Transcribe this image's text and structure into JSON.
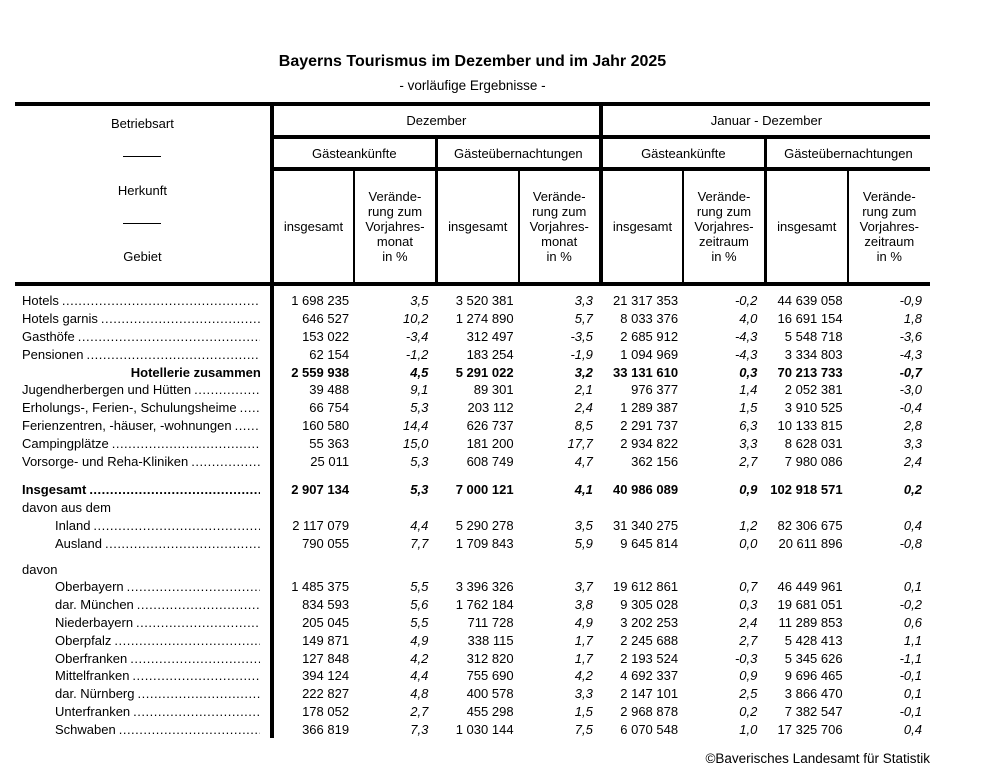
{
  "title": "Bayerns Tourismus im Dezember und im Jahr 2025",
  "subtitle": "- vorläufige Ergebnisse -",
  "stub": {
    "line1": "Betriebsart",
    "line2": "Herkunft",
    "line3": "Gebiet"
  },
  "columns": {
    "group_december": "Dezember",
    "group_jan_dec": "Januar - Dezember",
    "arrivals": "Gästeankünfte",
    "overnights": "Gästeübernachtungen",
    "total": "insgesamt",
    "change_month": "Verände-\nrung zum\nVorjahres-\nmonat\nin %",
    "change_period": "Verände-\nrung zum\nVorjahres-\nzeitraum\nin %"
  },
  "rows": [
    {
      "label": "Hotels",
      "type": "normal",
      "indent": 0,
      "dots": true,
      "values": [
        "1 698 235",
        "3,5",
        "3 520 381",
        "3,3",
        "21 317 353",
        "-0,2",
        "44 639 058",
        "-0,9"
      ]
    },
    {
      "label": "Hotels garnis",
      "type": "normal",
      "indent": 0,
      "dots": true,
      "values": [
        "646 527",
        "10,2",
        "1 274 890",
        "5,7",
        "8 033 376",
        "4,0",
        "16 691 154",
        "1,8"
      ]
    },
    {
      "label": "Gasthöfe",
      "type": "normal",
      "indent": 0,
      "dots": true,
      "values": [
        "153 022",
        "-3,4",
        "312 497",
        "-3,5",
        "2 685 912",
        "-4,3",
        "5 548 718",
        "-3,6"
      ]
    },
    {
      "label": "Pensionen",
      "type": "normal",
      "indent": 0,
      "dots": true,
      "values": [
        "62 154",
        "-1,2",
        "183 254",
        "-1,9",
        "1 094 969",
        "-4,3",
        "3 334 803",
        "-4,3"
      ]
    },
    {
      "label": "Hotellerie zusammen",
      "type": "subtotal",
      "indent": 0,
      "dots": false,
      "values": [
        "2 559 938",
        "4,5",
        "5 291 022",
        "3,2",
        "33 131 610",
        "0,3",
        "70 213 733",
        "-0,7"
      ]
    },
    {
      "label": "Jugendherbergen und Hütten",
      "type": "normal",
      "indent": 0,
      "dots": true,
      "values": [
        "39 488",
        "9,1",
        "89 301",
        "2,1",
        "976 377",
        "1,4",
        "2 052 381",
        "-3,0"
      ]
    },
    {
      "label": "Erholungs-, Ferien-, Schulungsheime",
      "type": "normal",
      "indent": 0,
      "dots": true,
      "values": [
        "66 754",
        "5,3",
        "203 112",
        "2,4",
        "1 289 387",
        "1,5",
        "3 910 525",
        "-0,4"
      ]
    },
    {
      "label": "Ferienzentren, -häuser, -wohnungen",
      "type": "normal",
      "indent": 0,
      "dots": true,
      "values": [
        "160 580",
        "14,4",
        "626 737",
        "8,5",
        "2 291 737",
        "6,3",
        "10 133 815",
        "2,8"
      ]
    },
    {
      "label": "Campingplätze",
      "type": "normal",
      "indent": 0,
      "dots": true,
      "values": [
        "55 363",
        "15,0",
        "181 200",
        "17,7",
        "2 934 822",
        "3,3",
        "8 628 031",
        "3,3"
      ]
    },
    {
      "label": "Vorsorge- und Reha-Kliniken",
      "type": "normal",
      "indent": 0,
      "dots": true,
      "values": [
        "25 011",
        "5,3",
        "608 749",
        "4,7",
        "362 156",
        "2,7",
        "7 980 086",
        "2,4"
      ]
    },
    {
      "label": "Insgesamt",
      "type": "total",
      "indent": 0,
      "dots": true,
      "gap_before": 11,
      "values": [
        "2 907 134",
        "5,3",
        "7 000 121",
        "4,1",
        "40 986 089",
        "0,9",
        "102 918 571",
        "0,2"
      ]
    },
    {
      "label": "davon aus dem",
      "type": "section",
      "indent": 0,
      "dots": false,
      "values": null
    },
    {
      "label": "Inland",
      "type": "normal",
      "indent": 1,
      "dots": true,
      "values": [
        "2 117 079",
        "4,4",
        "5 290 278",
        "3,5",
        "31 340 275",
        "1,2",
        "82 306 675",
        "0,4"
      ]
    },
    {
      "label": "Ausland",
      "type": "normal",
      "indent": 1,
      "dots": true,
      "values": [
        "790 055",
        "7,7",
        "1 709 843",
        "5,9",
        "9 645 814",
        "0,0",
        "20 611 896",
        "-0,8"
      ]
    },
    {
      "label": "davon",
      "type": "section",
      "indent": 0,
      "dots": false,
      "gap_before": 8,
      "values": null
    },
    {
      "label": "Oberbayern",
      "type": "normal",
      "indent": 1,
      "dots": true,
      "values": [
        "1 485 375",
        "5,5",
        "3 396 326",
        "3,7",
        "19 612 861",
        "0,7",
        "46 449 961",
        "0,1"
      ]
    },
    {
      "label": "dar. München",
      "type": "normal",
      "indent": 1,
      "dots": true,
      "values": [
        "834 593",
        "5,6",
        "1 762 184",
        "3,8",
        "9 305 028",
        "0,3",
        "19 681 051",
        "-0,2"
      ]
    },
    {
      "label": "Niederbayern",
      "type": "normal",
      "indent": 1,
      "dots": true,
      "values": [
        "205 045",
        "5,5",
        "711 728",
        "4,9",
        "3 202 253",
        "2,4",
        "11 289 853",
        "0,6"
      ]
    },
    {
      "label": "Oberpfalz",
      "type": "normal",
      "indent": 1,
      "dots": true,
      "values": [
        "149 871",
        "4,9",
        "338 115",
        "1,7",
        "2 245 688",
        "2,7",
        "5 428 413",
        "1,1"
      ]
    },
    {
      "label": "Oberfranken",
      "type": "normal",
      "indent": 1,
      "dots": true,
      "values": [
        "127 848",
        "4,2",
        "312 820",
        "1,7",
        "2 193 524",
        "-0,3",
        "5 345 626",
        "-1,1"
      ]
    },
    {
      "label": "Mittelfranken",
      "type": "normal",
      "indent": 1,
      "dots": true,
      "values": [
        "394 124",
        "4,4",
        "755 690",
        "4,2",
        "4 692 337",
        "0,9",
        "9 696 465",
        "-0,1"
      ]
    },
    {
      "label": "dar. Nürnberg",
      "type": "normal",
      "indent": 1,
      "dots": true,
      "values": [
        "222 827",
        "4,8",
        "400 578",
        "3,3",
        "2 147 101",
        "2,5",
        "3 866 470",
        "0,1"
      ]
    },
    {
      "label": "Unterfranken",
      "type": "normal",
      "indent": 1,
      "dots": true,
      "values": [
        "178 052",
        "2,7",
        "455 298",
        "1,5",
        "2 968 878",
        "0,2",
        "7 382 547",
        "-0,1"
      ]
    },
    {
      "label": "Schwaben",
      "type": "normal",
      "indent": 1,
      "dots": true,
      "values": [
        "366 819",
        "7,3",
        "1 030 144",
        "7,5",
        "6 070 548",
        "1,0",
        "17 325 706",
        "0,4"
      ]
    }
  ],
  "footer": "©Bayerisches Landesamt für Statistik"
}
